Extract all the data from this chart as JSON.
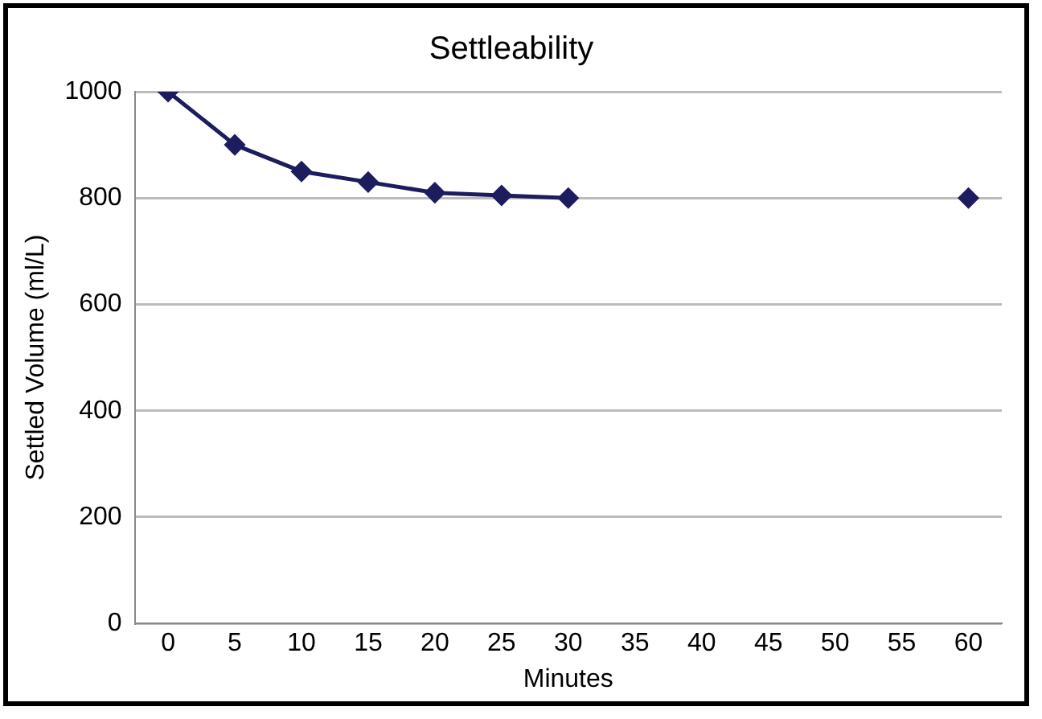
{
  "chart_data": {
    "type": "line",
    "title": "Settleability",
    "xlabel": "Minutes",
    "ylabel": "Settled Volume (ml/L)",
    "categories": [
      "0",
      "5",
      "10",
      "15",
      "20",
      "25",
      "30",
      "35",
      "40",
      "45",
      "50",
      "55",
      "60"
    ],
    "series": [
      {
        "color": "#1c1c5e",
        "values": [
          1000,
          900,
          850,
          830,
          810,
          805,
          800,
          null,
          null,
          null,
          null,
          null,
          800
        ]
      }
    ],
    "ylim": [
      0,
      1000
    ],
    "yticks": [
      0,
      200,
      400,
      600,
      800,
      1000
    ],
    "grid": "y",
    "legend": false,
    "marker": "diamond",
    "line_style": "solid"
  }
}
